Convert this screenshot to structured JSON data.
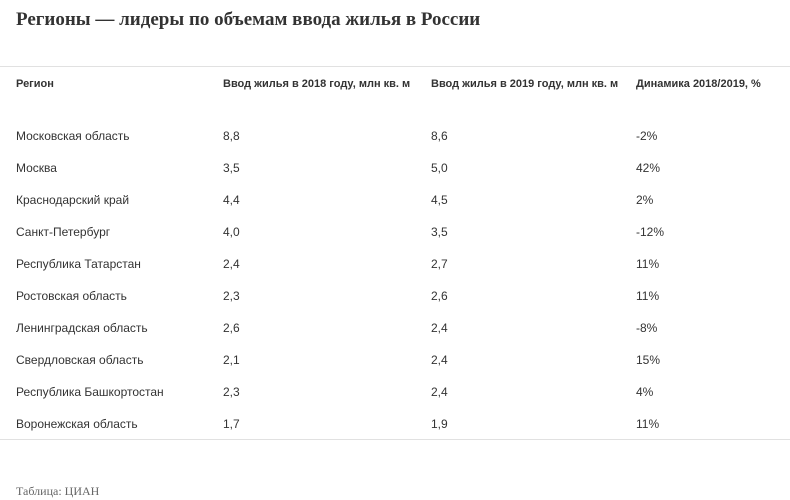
{
  "chart_data": {
    "type": "table",
    "title": "Регионы — лидеры по объемам ввода жилья в России",
    "columns": [
      "Регион",
      "Ввод жилья в 2018 году, млн кв. м",
      "Ввод жилья в 2019 году, млн кв. м",
      "Динамика 2018/2019, %"
    ],
    "rows": [
      [
        "Московская область",
        "8,8",
        "8,6",
        "-2%"
      ],
      [
        "Москва",
        "3,5",
        "5,0",
        "42%"
      ],
      [
        "Краснодарский край",
        "4,4",
        "4,5",
        "2%"
      ],
      [
        "Санкт-Петербург",
        "4,0",
        "3,5",
        "-12%"
      ],
      [
        "Республика Татарстан",
        "2,4",
        "2,7",
        "11%"
      ],
      [
        "Ростовская область",
        "2,3",
        "2,6",
        "11%"
      ],
      [
        "Ленинградская область",
        "2,6",
        "2,4",
        "-8%"
      ],
      [
        "Свердловская область",
        "2,1",
        "2,4",
        "15%"
      ],
      [
        "Республика Башкортостан",
        "2,3",
        "2,4",
        "4%"
      ],
      [
        "Воронежская область",
        "1,7",
        "1,9",
        "11%"
      ]
    ],
    "source": "Таблица: ЦИАН"
  }
}
